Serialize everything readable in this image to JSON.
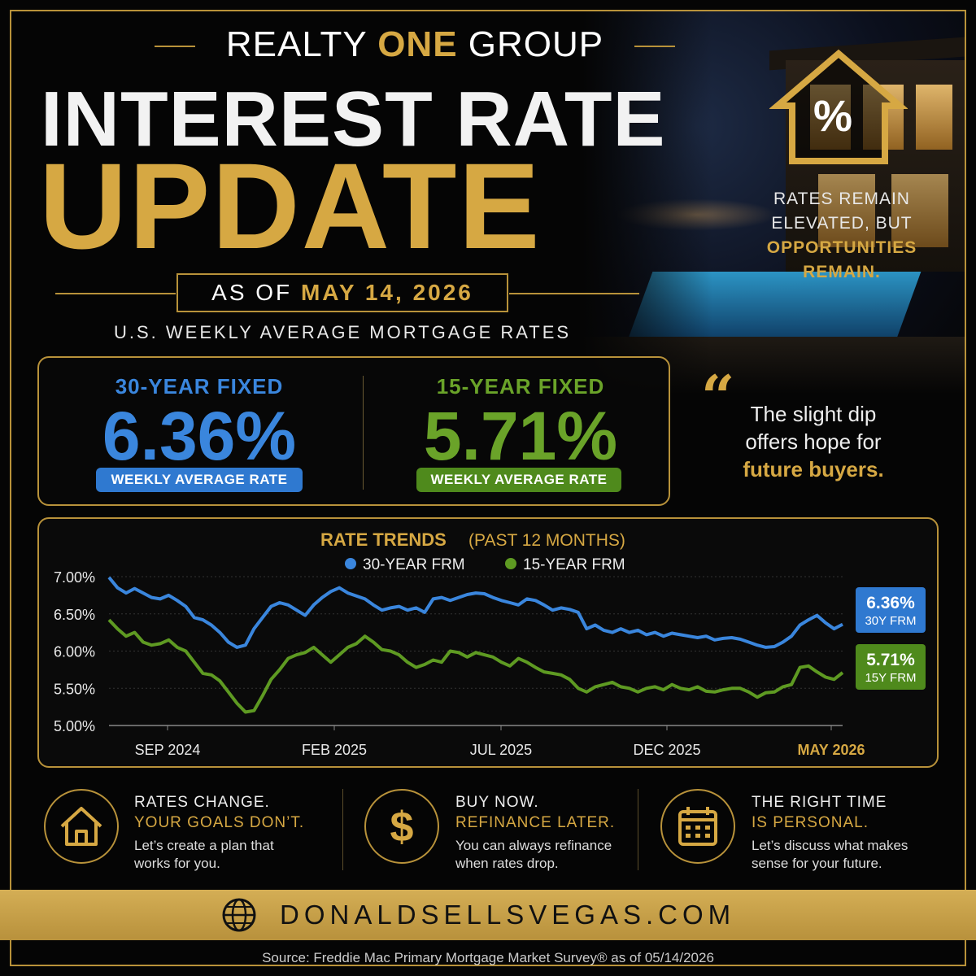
{
  "brand": {
    "pre": "REALTY ",
    "highlight": "ONE",
    "post": " GROUP"
  },
  "title": {
    "line1": "INTEREST RATE",
    "line2": "UPDATE"
  },
  "as_of": {
    "prefix": "AS OF ",
    "date": "MAY 14, 2026"
  },
  "subtitle": "U.S. WEEKLY AVERAGE MORTGAGE RATES",
  "house_icon": {
    "symbol": "%",
    "icon": "house-percent-icon"
  },
  "tagline": {
    "line1": "RATES REMAIN",
    "line2": "ELEVATED, BUT",
    "line3": "OPPORTUNITIES",
    "line4": "REMAIN."
  },
  "rates": {
    "thirty": {
      "label": "30-YEAR FIXED",
      "value": "6.36%",
      "pill": "WEEKLY AVERAGE RATE",
      "color": "#3a86dd"
    },
    "fifteen": {
      "label": "15-YEAR FIXED",
      "value": "5.71%",
      "pill": "WEEKLY AVERAGE RATE",
      "color": "#5e9a22"
    }
  },
  "quote": {
    "mark": "“",
    "line1": "The slight dip",
    "line2": "offers hope for",
    "line3": "future buyers."
  },
  "chart_data": {
    "type": "line",
    "title": "RATE TRENDS",
    "subtitle": "(PAST 12 MONTHS)",
    "ylim": [
      5.0,
      7.0
    ],
    "yticks": [
      "7.00%",
      "6.50%",
      "6.00%",
      "5.50%",
      "5.00%"
    ],
    "xticks": [
      "SEP 2024",
      "FEB 2025",
      "JUL 2025",
      "DEC 2025",
      "MAY 2026"
    ],
    "xlabel": "",
    "ylabel": "",
    "grid": true,
    "legend_position": "top-center",
    "series": [
      {
        "name": "30-YEAR FRM",
        "color": "#3a86dd",
        "end_label": "6.36%",
        "end_sub": "30Y FRM",
        "values": [
          6.99,
          6.85,
          6.78,
          6.84,
          6.78,
          6.72,
          6.7,
          6.75,
          6.68,
          6.6,
          6.45,
          6.42,
          6.35,
          6.25,
          6.12,
          6.05,
          6.08,
          6.3,
          6.45,
          6.6,
          6.65,
          6.62,
          6.55,
          6.48,
          6.62,
          6.72,
          6.8,
          6.85,
          6.78,
          6.74,
          6.7,
          6.62,
          6.55,
          6.58,
          6.6,
          6.55,
          6.58,
          6.52,
          6.7,
          6.72,
          6.68,
          6.72,
          6.76,
          6.78,
          6.77,
          6.72,
          6.68,
          6.65,
          6.62,
          6.7,
          6.68,
          6.62,
          6.55,
          6.58,
          6.56,
          6.52,
          6.3,
          6.35,
          6.28,
          6.25,
          6.3,
          6.25,
          6.28,
          6.22,
          6.25,
          6.2,
          6.24,
          6.22,
          6.2,
          6.18,
          6.2,
          6.15,
          6.17,
          6.18,
          6.16,
          6.12,
          6.08,
          6.05,
          6.06,
          6.12,
          6.2,
          6.35,
          6.42,
          6.48,
          6.38,
          6.3,
          6.36
        ]
      },
      {
        "name": "15-YEAR FRM",
        "color": "#5e9a22",
        "end_label": "5.71%",
        "end_sub": "15Y FRM",
        "values": [
          6.42,
          6.3,
          6.2,
          6.25,
          6.12,
          6.08,
          6.1,
          6.15,
          6.05,
          6.0,
          5.85,
          5.7,
          5.68,
          5.6,
          5.45,
          5.3,
          5.18,
          5.2,
          5.4,
          5.62,
          5.75,
          5.9,
          5.95,
          5.98,
          6.05,
          5.95,
          5.85,
          5.95,
          6.05,
          6.1,
          6.2,
          6.12,
          6.02,
          6.0,
          5.95,
          5.85,
          5.78,
          5.82,
          5.88,
          5.85,
          6.0,
          5.98,
          5.92,
          5.98,
          5.95,
          5.92,
          5.85,
          5.8,
          5.9,
          5.85,
          5.78,
          5.72,
          5.7,
          5.68,
          5.62,
          5.5,
          5.45,
          5.52,
          5.55,
          5.58,
          5.52,
          5.5,
          5.45,
          5.5,
          5.52,
          5.48,
          5.55,
          5.5,
          5.48,
          5.52,
          5.46,
          5.45,
          5.48,
          5.5,
          5.5,
          5.45,
          5.38,
          5.44,
          5.45,
          5.52,
          5.55,
          5.78,
          5.8,
          5.72,
          5.65,
          5.62,
          5.71
        ]
      }
    ]
  },
  "features": [
    {
      "icon": "home-icon",
      "line1": "RATES CHANGE.",
      "line2": "YOUR GOALS DON’T.",
      "body1": "Let’s create a plan that",
      "body2": "works for you."
    },
    {
      "icon": "dollar-icon",
      "line1": "BUY NOW.",
      "line2": "REFINANCE LATER.",
      "body1": "You can always refinance",
      "body2": "when rates drop."
    },
    {
      "icon": "calendar-icon",
      "line1": "THE RIGHT TIME",
      "line2": "IS PERSONAL.",
      "body1": "Let’s discuss what makes",
      "body2": "sense for your future."
    }
  ],
  "website": "DONALDSELLSVEGAS.COM",
  "source": "Source: Freddie Mac Primary Mortgage Market Survey® as of 05/14/2026",
  "colors": {
    "gold": "#d6a843",
    "blue": "#3a86dd",
    "green": "#5e9a22",
    "background": "#050505"
  }
}
